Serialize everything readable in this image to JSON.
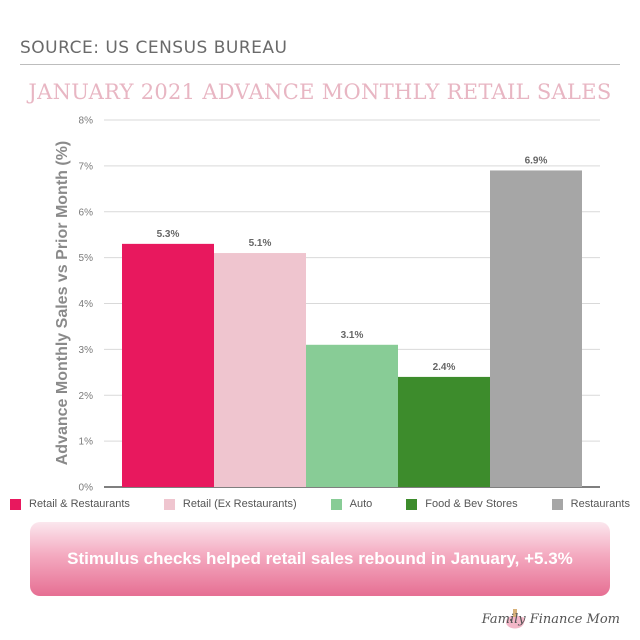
{
  "source": "SOURCE: US CENSUS BUREAU",
  "colors": {
    "retail_restaurants": "#e8185e",
    "retail_ex": "#efc5cf",
    "auto": "#88cc96",
    "food_bev": "#3d8c2c",
    "restaurants": "#a6a6a6",
    "title": "#e8b6c3"
  },
  "chart_data": {
    "type": "bar",
    "title": "JANUARY 2021 ADVANCE MONTHLY RETAIL SALES",
    "xlabel": "",
    "ylabel": "Advance Monthly Sales vs Prior Month (%)",
    "ylim": [
      0,
      8
    ],
    "yticks": [
      "0%",
      "1%",
      "2%",
      "3%",
      "4%",
      "5%",
      "6%",
      "7%",
      "8%"
    ],
    "grid": true,
    "legend": "bottom",
    "categories": [
      "Retail & Restaurants",
      "Retail (Ex Restaurants)",
      "Auto",
      "Food & Bev Stores",
      "Restaurants"
    ],
    "values": [
      5.3,
      5.1,
      3.1,
      2.4,
      6.9
    ],
    "labels": [
      "5.3%",
      "5.1%",
      "3.1%",
      "2.4%",
      "6.9%"
    ]
  },
  "banner": "Stimulus checks helped retail sales rebound in January, +5.3%",
  "brand": "Family Finance Mom"
}
